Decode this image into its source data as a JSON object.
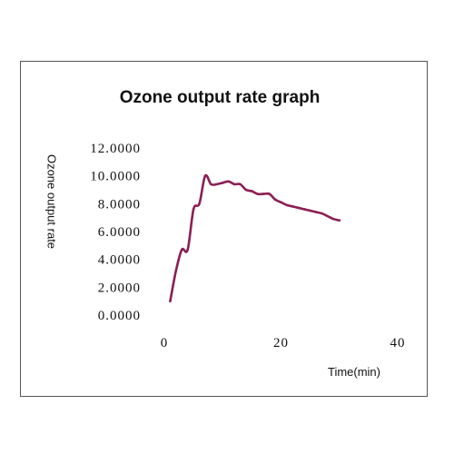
{
  "chart_data": {
    "type": "line",
    "title": "Ozone output rate graph",
    "xlabel": "Time(min)",
    "ylabel": "Ozone output rate",
    "xlim": [
      0,
      40
    ],
    "ylim": [
      0,
      12
    ],
    "x_ticks": [
      0,
      20,
      40
    ],
    "x_tick_labels": [
      "0",
      "20",
      "40"
    ],
    "y_ticks": [
      0,
      2,
      4,
      6,
      8,
      10,
      12
    ],
    "y_tick_labels": [
      "0.0000",
      "2.0000",
      "4.0000",
      "6.0000",
      "8.0000",
      "10.0000",
      "12.0000"
    ],
    "grid": false,
    "legend": "none",
    "series_color": "#8B1F52",
    "series": [
      {
        "x": [
          1,
          2,
          3,
          4,
          5,
          6,
          7,
          8,
          9,
          10,
          11,
          12,
          13,
          14,
          15,
          16,
          17,
          18,
          19,
          20,
          21,
          22,
          23,
          24,
          25,
          26,
          27,
          28,
          29,
          30
        ],
        "values": [
          1.0,
          3.2,
          4.7,
          4.7,
          7.6,
          8.0,
          10.0,
          9.4,
          9.4,
          9.5,
          9.6,
          9.4,
          9.4,
          9.0,
          8.9,
          8.7,
          8.7,
          8.7,
          8.3,
          8.1,
          7.9,
          7.8,
          7.7,
          7.6,
          7.5,
          7.4,
          7.3,
          7.1,
          6.9,
          6.8
        ]
      }
    ]
  }
}
